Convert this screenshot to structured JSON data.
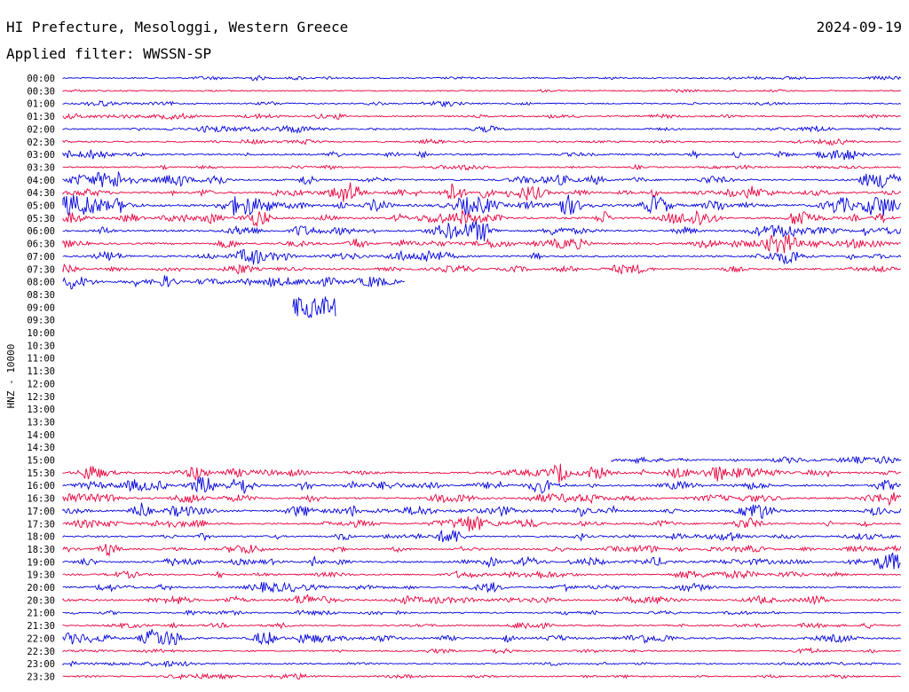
{
  "header": {
    "location": "HI Prefecture, Mesologgi, Western Greece",
    "date": "2024-09-19",
    "filter": "Applied filter: WWSSN-SP"
  },
  "chart_data": {
    "type": "line",
    "ylabel": "HNZ - 10000",
    "row_labels": [
      "00:00",
      "00:30",
      "01:00",
      "01:30",
      "02:00",
      "02:30",
      "03:00",
      "03:30",
      "04:00",
      "04:30",
      "05:00",
      "05:30",
      "06:00",
      "06:30",
      "07:00",
      "07:30",
      "08:00",
      "08:30",
      "09:00",
      "09:30",
      "10:00",
      "10:30",
      "11:00",
      "11:30",
      "12:00",
      "12:30",
      "13:00",
      "13:30",
      "14:00",
      "14:30",
      "15:00",
      "15:30",
      "16:00",
      "16:30",
      "17:00",
      "17:30",
      "18:00",
      "18:30",
      "19:00",
      "19:30",
      "20:00",
      "20:30",
      "21:00",
      "21:30",
      "22:00",
      "22:30",
      "23:00",
      "23:30"
    ],
    "colors": {
      "even": "#0000dd",
      "odd": "#e8003c"
    },
    "row_data_extent": [
      [
        0,
        1
      ],
      [
        0,
        1
      ],
      [
        0,
        1
      ],
      [
        0,
        1
      ],
      [
        0,
        1
      ],
      [
        0,
        1
      ],
      [
        0,
        1
      ],
      [
        0,
        1
      ],
      [
        0,
        1
      ],
      [
        0,
        1
      ],
      [
        0,
        1
      ],
      [
        0,
        1
      ],
      [
        0,
        1
      ],
      [
        0,
        1
      ],
      [
        0,
        1
      ],
      [
        0,
        1
      ],
      [
        0,
        0.408
      ],
      [
        0,
        0
      ],
      [
        0.274,
        0.326
      ],
      [
        0,
        0
      ],
      [
        0,
        0
      ],
      [
        0,
        0
      ],
      [
        0,
        0
      ],
      [
        0,
        0
      ],
      [
        0,
        0
      ],
      [
        0,
        0
      ],
      [
        0,
        0
      ],
      [
        0,
        0
      ],
      [
        0,
        0
      ],
      [
        0,
        0
      ],
      [
        0.654,
        1
      ],
      [
        0,
        1
      ],
      [
        0,
        1
      ],
      [
        0,
        1
      ],
      [
        0,
        1
      ],
      [
        0,
        1
      ],
      [
        0,
        1
      ],
      [
        0,
        1
      ],
      [
        0,
        1
      ],
      [
        0,
        1
      ],
      [
        0,
        1
      ],
      [
        0,
        1
      ],
      [
        0,
        1
      ],
      [
        0,
        1
      ],
      [
        0,
        1
      ],
      [
        0,
        1
      ],
      [
        0,
        1
      ],
      [
        0,
        1
      ]
    ],
    "row_activity": [
      0.4,
      0.3,
      0.5,
      0.6,
      0.6,
      0.5,
      0.9,
      0.5,
      1.2,
      1.3,
      2.0,
      1.4,
      1.2,
      1.2,
      1.1,
      1.0,
      0.9,
      0,
      1.2,
      0,
      0,
      0,
      0,
      0,
      0,
      0,
      0,
      0,
      0,
      0,
      0.6,
      1.3,
      1.2,
      1.1,
      1.2,
      1.0,
      1.0,
      0.9,
      1.1,
      0.8,
      0.8,
      1.0,
      0.5,
      0.6,
      1.1,
      0.5,
      0.5,
      0.4
    ]
  }
}
